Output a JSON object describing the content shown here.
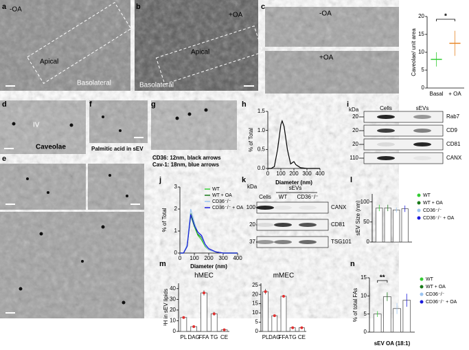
{
  "panel_letters": [
    "a",
    "b",
    "c",
    "d",
    "e",
    "f",
    "g",
    "h",
    "i",
    "j",
    "k",
    "l",
    "m",
    "n"
  ],
  "micrographs": {
    "a": [
      "-OA",
      "Apical",
      "Basolateral"
    ],
    "b": [
      "+OA",
      "Apical",
      "Basolateral"
    ],
    "c": [
      "-OA",
      "+OA"
    ],
    "d": [
      "IV",
      "Caveolae"
    ],
    "f": [
      "Palmitic acid in sEV"
    ],
    "g": [
      "CD36: 12nm, black arrows",
      "Cav-1: 18nm, blue arrows"
    ]
  },
  "blots": {
    "i": {
      "unit": "kDa",
      "columns": [
        "Cells",
        "sEVs"
      ],
      "rows": [
        {
          "kda": 20,
          "name": "Rab7"
        },
        {
          "kda": 20,
          "name": "CD9"
        },
        {
          "kda": 20,
          "name": "CD81"
        },
        {
          "kda": 110,
          "name": "CANX"
        }
      ]
    },
    "k": {
      "unit": "kDa",
      "group": "sEVs",
      "columns": [
        "Cells",
        "WT",
        "CD36⁻/⁻"
      ],
      "rows": [
        {
          "kda": 100,
          "name": "CANX"
        },
        {
          "kda": 20,
          "name": "CD81"
        },
        {
          "kda": 37,
          "name": "TSG101"
        }
      ]
    }
  },
  "chart_data": [
    {
      "type": "dot",
      "ylabel": "Caveolae/ unit area",
      "categories": [
        "Basal",
        "+ OA"
      ],
      "values": [
        8,
        12.5
      ],
      "errors": [
        2,
        3.5
      ],
      "colors": [
        "#33cc33",
        "#e8892a"
      ],
      "ylim": [
        0,
        20
      ],
      "yticks": [
        0,
        5,
        10,
        15,
        20
      ],
      "annotation": "*"
    },
    {
      "type": "line",
      "ylabel": "% of Total",
      "xlabel": "Diameter (nm)",
      "x": [
        0,
        25,
        50,
        75,
        100,
        110,
        125,
        150,
        175,
        200,
        215,
        250,
        300,
        400
      ],
      "values": [
        0,
        0,
        0.05,
        0.5,
        1.15,
        1.25,
        1.1,
        0.5,
        0.12,
        0.18,
        0.1,
        0.02,
        0,
        0
      ],
      "color": "#000000",
      "xlim": [
        0,
        400
      ],
      "xticks": [
        0,
        100,
        200,
        300,
        400
      ],
      "ylim": [
        0,
        1.5
      ],
      "yticks": [
        {
          "value": 0,
          "label": "0.0"
        },
        {
          "value": 0.5,
          "label": "0.5"
        },
        {
          "value": 1,
          "label": "1.0"
        },
        {
          "value": 1.5,
          "label": "1.5"
        }
      ]
    },
    {
      "type": "line",
      "ylabel": "% of Total",
      "xlabel": "Diameter (nm)",
      "legend": "upper right",
      "x": [
        0,
        25,
        50,
        75,
        100,
        125,
        150,
        175,
        200,
        250,
        300,
        400
      ],
      "series": [
        {
          "name": "WT",
          "color": "#33cc33",
          "values": [
            0,
            0,
            0.3,
            1.7,
            1.2,
            0.8,
            0.6,
            0.3,
            0.15,
            0.05,
            0,
            0
          ]
        },
        {
          "name": "WT + OA",
          "color": "#1a7a1a",
          "values": [
            0,
            0,
            0.35,
            1.8,
            1.3,
            0.85,
            0.7,
            0.35,
            0.15,
            0.05,
            0,
            0
          ]
        },
        {
          "name": "CD36⁻/⁻",
          "color": "#9bc4f0",
          "values": [
            0,
            0,
            0.4,
            2.0,
            1.4,
            0.9,
            0.75,
            0.35,
            0.15,
            0.05,
            0,
            0
          ]
        },
        {
          "name": "CD36⁻/⁻ + OA",
          "color": "#1a1adc",
          "values": [
            0,
            0,
            0.3,
            1.75,
            1.25,
            0.95,
            0.8,
            0.4,
            0.2,
            0.05,
            0,
            0
          ]
        }
      ],
      "xlim": [
        0,
        400
      ],
      "xticks": [
        0,
        100,
        200,
        300,
        400
      ],
      "ylim": [
        0,
        3
      ],
      "yticks": [
        0,
        1,
        2,
        3
      ]
    },
    {
      "type": "bar",
      "ylabel": "sEV Size (nm)",
      "legend": "right",
      "categories": [
        null
      ],
      "series": [
        {
          "name": "WT",
          "color": "#33cc33",
          "values": [
            85
          ],
          "errors": [
            8
          ]
        },
        {
          "name": "WT + OA",
          "color": "#1a7a1a",
          "values": [
            85
          ],
          "errors": [
            8
          ]
        },
        {
          "name": "CD36⁻/⁻",
          "color": "#9bc4f0",
          "values": [
            80
          ],
          "errors": [
            6
          ]
        },
        {
          "name": "CD36⁻/⁻ + OA",
          "color": "#1a1adc",
          "values": [
            83
          ],
          "errors": [
            8
          ]
        }
      ],
      "ylim": [
        0,
        120
      ],
      "yticks": [
        0,
        50,
        100
      ]
    },
    {
      "type": "bar",
      "title": "hMEC",
      "ylabel": "³H in sEV lipids",
      "categories": [
        "PL",
        "DAG",
        "FFA",
        "TG",
        "CE"
      ],
      "values": [
        13,
        4.5,
        36,
        16.5,
        1.5
      ],
      "errors": [
        0.5,
        0.8,
        2.5,
        1.8,
        0.3
      ],
      "color": "#ffffff",
      "marker_color": "#e03030",
      "ylim": [
        0,
        45
      ],
      "yticks": [
        0,
        10,
        20,
        30,
        40
      ]
    },
    {
      "type": "bar",
      "title": "mMEC",
      "categories": [
        "PL",
        "DAG",
        "FFA",
        "TG",
        "CE"
      ],
      "values": [
        21.5,
        8.5,
        19,
        2,
        2
      ],
      "errors": [
        1.5,
        0.5,
        0.6,
        0.2,
        0.2
      ],
      "color": "#ffffff",
      "marker_color": "#e03030",
      "ylim": [
        0,
        26
      ],
      "yticks": [
        0,
        5,
        10,
        15,
        20,
        25
      ]
    },
    {
      "type": "bar",
      "ylabel": "% of total FAs",
      "xlabel": "sEV OA (18:1)",
      "legend": "right",
      "categories": [
        null
      ],
      "series": [
        {
          "name": "WT",
          "color": "#33cc33",
          "values": [
            5
          ],
          "errors": [
            0.8
          ]
        },
        {
          "name": "WT + OA",
          "color": "#1a7a1a",
          "values": [
            9.8
          ],
          "errors": [
            1.2
          ]
        },
        {
          "name": "CD36⁻/⁻",
          "color": "#9bc4f0",
          "values": [
            6.5
          ],
          "errors": [
            1.5
          ]
        },
        {
          "name": "CD36⁻/⁻ + OA",
          "color": "#1a1adc",
          "values": [
            8.8
          ],
          "errors": [
            1.8
          ]
        }
      ],
      "ylim": [
        0,
        15
      ],
      "yticks": [
        0,
        5,
        10,
        15
      ],
      "annotation": "**"
    }
  ]
}
